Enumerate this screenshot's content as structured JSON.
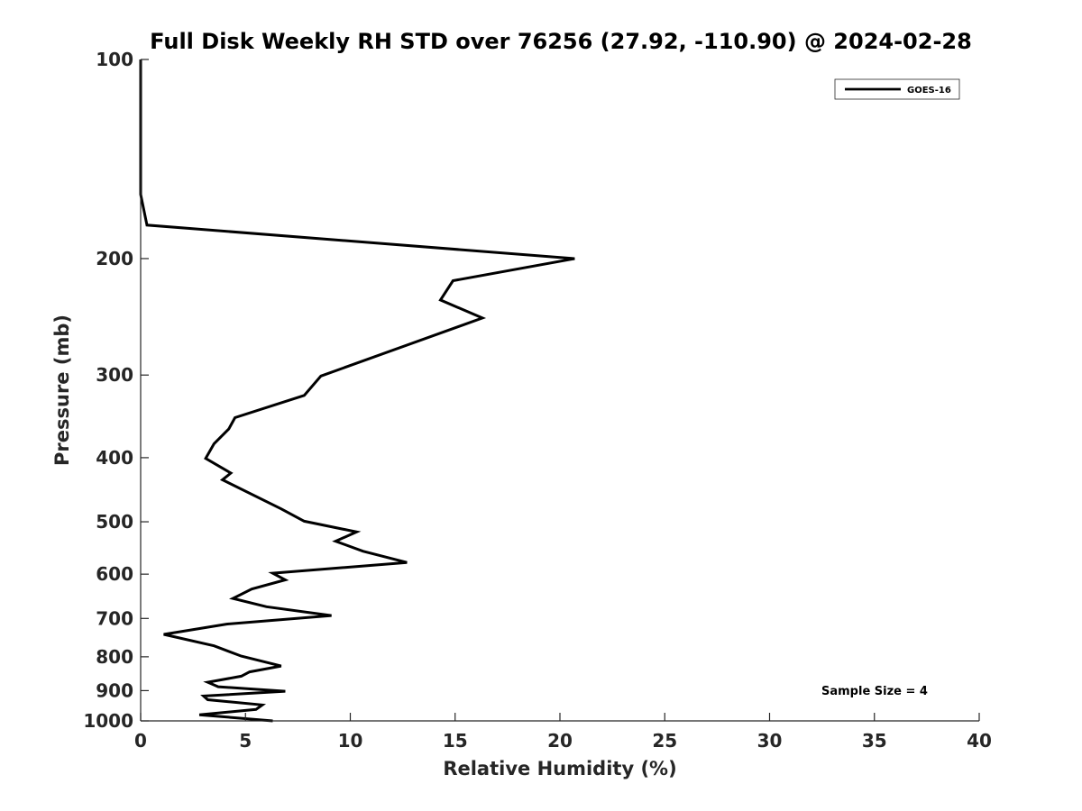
{
  "chart_data": {
    "type": "line",
    "title": "Full Disk Weekly RH STD over 76256 (27.92, -110.90) @ 2024-02-28",
    "xlabel": "Relative Humidity (%)",
    "ylabel": "Pressure (mb)",
    "xlim": [
      0,
      40
    ],
    "ylim": [
      100,
      1000
    ],
    "y_scale": "log",
    "y_reversed": true,
    "x_ticks": [
      "0",
      "5",
      "10",
      "15",
      "20",
      "25",
      "30",
      "35",
      "40"
    ],
    "y_ticks": [
      "100",
      "200",
      "300",
      "400",
      "500",
      "600",
      "700",
      "800",
      "900",
      "1000"
    ],
    "grid": false,
    "legend_position": "top-right",
    "annotation": "Sample Size = 4",
    "series": [
      {
        "name": "GOES-16",
        "color": "#000000",
        "x": [
          0.0,
          0.0,
          0.3,
          20.7,
          14.9,
          14.3,
          16.3,
          8.6,
          7.8,
          4.5,
          4.2,
          3.5,
          3.1,
          4.3,
          3.9,
          6.7,
          7.8,
          10.3,
          9.3,
          10.6,
          12.7,
          6.3,
          6.9,
          5.3,
          4.4,
          6.0,
          9.1,
          4.1,
          1.1,
          3.5,
          4.8,
          6.7,
          5.2,
          4.8,
          3.2,
          3.7,
          6.9,
          3.0,
          3.2,
          5.8,
          5.5,
          2.8,
          6.3
        ],
        "y": [
          100,
          160,
          178,
          200,
          216,
          231,
          246,
          301,
          322,
          348,
          362,
          381,
          401,
          422,
          432,
          478,
          499,
          518,
          535,
          554,
          576,
          598,
          612,
          632,
          653,
          672,
          693,
          714,
          740,
          770,
          798,
          826,
          843,
          856,
          874,
          888,
          902,
          917,
          929,
          946,
          961,
          979,
          1000
        ]
      }
    ]
  }
}
